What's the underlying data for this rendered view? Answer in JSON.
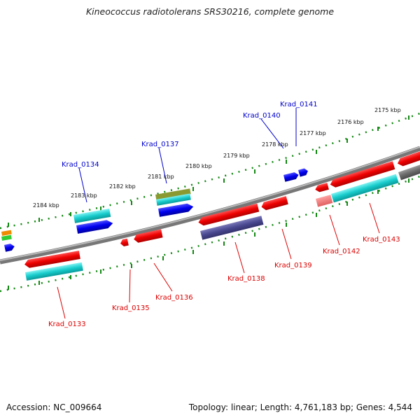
{
  "title": "Kineococcus radiotolerans SRS30216, complete genome",
  "accession": "Accession: NC_009664",
  "topology": "Topology: linear; Length: 4,761,183 bp; Genes: 4,544",
  "colors": {
    "label_top": "#0000cc",
    "label_bottom": "#dd0000",
    "backbone": "#888888",
    "ruler": "#118811"
  },
  "scale_ticks": [
    "2175 kbp",
    "2176 kbp",
    "2177 kbp",
    "2178 kbp",
    "2179 kbp",
    "2180 kbp",
    "2181 kbp",
    "2182 kbp",
    "2183 kbp",
    "2184 kbp"
  ],
  "gene_labels_top": [
    "Krad_0134",
    "Krad_0137",
    "Krad_0140",
    "Krad_0141"
  ],
  "gene_labels_bottom": [
    "Krad_0133",
    "Krad_0135",
    "Krad_0136",
    "Krad_0138",
    "Krad_0139",
    "Krad_0142",
    "Krad_0143"
  ]
}
